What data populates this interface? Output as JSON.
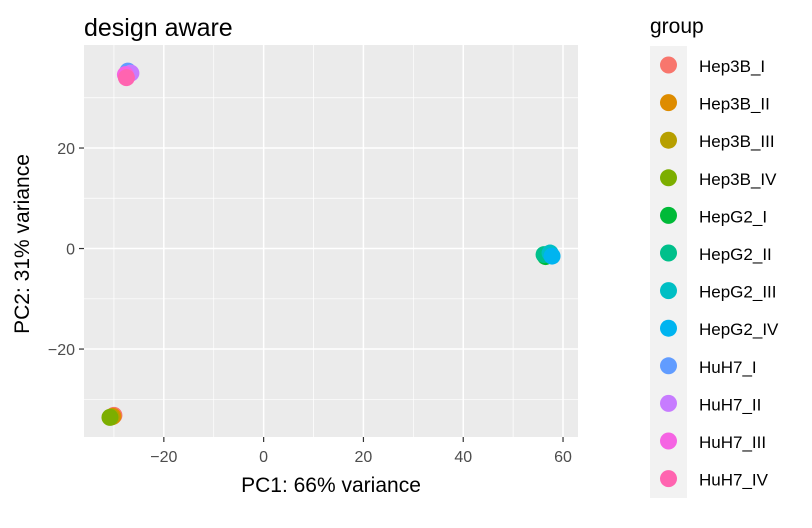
{
  "chart_data": {
    "type": "scatter",
    "title": "design aware",
    "xlabel": "PC1: 66% variance",
    "ylabel": "PC2: 31% variance",
    "xlim": [
      -36,
      63
    ],
    "ylim": [
      -37.5,
      40.5
    ],
    "x_ticks": [
      -20,
      0,
      20,
      40,
      60
    ],
    "x_tick_labels": [
      "−20",
      "0",
      "20",
      "40",
      "60"
    ],
    "y_ticks": [
      -20,
      0,
      20
    ],
    "y_tick_labels": [
      "−20",
      "0",
      "20"
    ],
    "grid": true,
    "legend_title": "group",
    "legend_position": "right",
    "series": [
      {
        "name": "Hep3B_I",
        "color": "#F8766D",
        "points": [
          [
            -30.0,
            -33.2
          ]
        ]
      },
      {
        "name": "Hep3B_II",
        "color": "#DE8C00",
        "points": [
          [
            -30.2,
            -33.4
          ]
        ]
      },
      {
        "name": "Hep3B_III",
        "color": "#B79F00",
        "points": [
          [
            -30.5,
            -33.5
          ]
        ]
      },
      {
        "name": "Hep3B_IV",
        "color": "#7CAE00",
        "points": [
          [
            -30.8,
            -33.6
          ]
        ]
      },
      {
        "name": "HepG2_I",
        "color": "#00BA38",
        "points": [
          [
            56.5,
            -1.6
          ]
        ]
      },
      {
        "name": "HepG2_II",
        "color": "#00C08B",
        "points": [
          [
            56.2,
            -1.2
          ]
        ]
      },
      {
        "name": "HepG2_III",
        "color": "#00BFC4",
        "points": [
          [
            57.4,
            -0.9
          ]
        ]
      },
      {
        "name": "HepG2_IV",
        "color": "#00B4F0",
        "points": [
          [
            57.8,
            -1.5
          ]
        ]
      },
      {
        "name": "HuH7_I",
        "color": "#619CFF",
        "points": [
          [
            -27.2,
            35.3
          ]
        ]
      },
      {
        "name": "HuH7_II",
        "color": "#C77CFF",
        "points": [
          [
            -26.6,
            34.9
          ]
        ]
      },
      {
        "name": "HuH7_III",
        "color": "#F564E3",
        "points": [
          [
            -27.7,
            34.6
          ]
        ]
      },
      {
        "name": "HuH7_IV",
        "color": "#FF64B0",
        "points": [
          [
            -27.5,
            34.0
          ]
        ]
      }
    ]
  }
}
